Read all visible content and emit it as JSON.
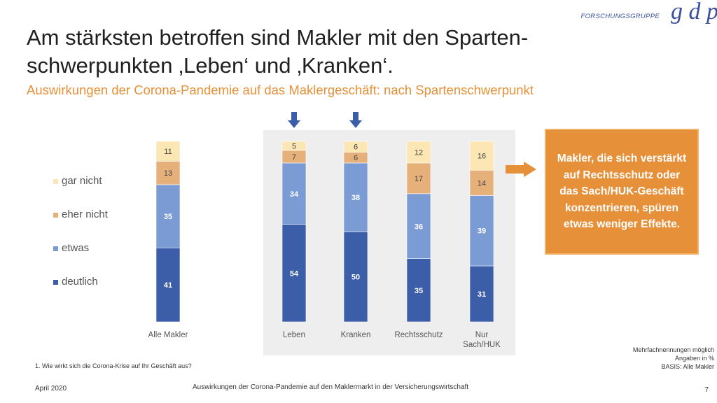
{
  "title": "Am stärksten betroffen sind Makler mit den Sparten-schwerpunkten ‚Leben‘ und ‚Kranken‘.",
  "subtitle": "Auswirkungen der Corona-Pandemie auf das Maklergeschäft: nach Spartenschwerpunkt",
  "logo": {
    "text": "FORSCHUNGSGRUPPE",
    "mark": "g d p"
  },
  "callout": "Makler, die sich verstärkt auf Rechtsschutz oder das Sach/HUK-Geschäft konzentrieren, spüren etwas weniger Effekte.",
  "footnote": "1. Wie wirkt sich die Corona-Krise auf Ihr Geschäft aus?",
  "notes": [
    "Mehrfachnennungen möglich",
    "Angaben in %",
    "BASIS: Alle Makler"
  ],
  "footer": {
    "date": "April 2020",
    "center": "Auswirkungen der Corona-Pandemie auf den Maklermarkt in der Versicherungswirtschaft",
    "page": "7"
  },
  "colors": {
    "deutlich": "#3c5ea8",
    "etwas": "#7b9bd4",
    "eher_nicht": "#e5b07a",
    "gar_nicht": "#fbe6b4",
    "accent": "#e6913a",
    "highlight_bg": "#eeeeee",
    "arrow": "#3c5ea8"
  },
  "chart_data": {
    "type": "bar",
    "stacked": true,
    "categories": [
      "Alle Makler",
      "Leben",
      "Kranken",
      "Rechtsschutz",
      "Nur Sach/HUK"
    ],
    "highlighted_categories": [
      "Leben",
      "Kranken"
    ],
    "series": [
      {
        "name": "deutlich",
        "values": [
          41,
          54,
          50,
          35,
          31
        ]
      },
      {
        "name": "etwas",
        "values": [
          35,
          34,
          38,
          36,
          39
        ]
      },
      {
        "name": "eher nicht",
        "values": [
          13,
          7,
          6,
          17,
          14
        ]
      },
      {
        "name": "gar nicht",
        "values": [
          11,
          5,
          6,
          12,
          16
        ]
      }
    ],
    "legend_order": [
      "gar nicht",
      "eher nicht",
      "etwas",
      "deutlich"
    ],
    "legend_position": "left",
    "ylim": [
      0,
      100
    ],
    "grid": false
  }
}
